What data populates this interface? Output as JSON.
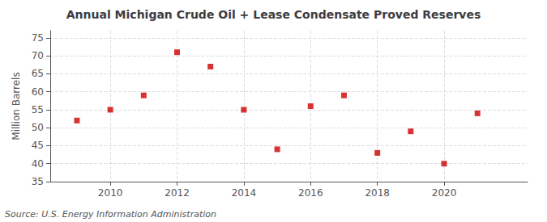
{
  "chart_data": {
    "type": "scatter",
    "title": "Annual Michigan Crude Oil + Lease Condensate Proved Reserves",
    "ylabel": "Million Barrels",
    "source": "Source: U.S. Energy Information Administration",
    "x": [
      2009,
      2010,
      2011,
      2012,
      2013,
      2014,
      2015,
      2016,
      2017,
      2018,
      2019,
      2020,
      2021
    ],
    "values": [
      52.0,
      55.0,
      59.0,
      71.0,
      67.0,
      55.0,
      44.0,
      56.0,
      59.0,
      43.0,
      49.0,
      40.0,
      54.0
    ],
    "color": "#cc0000",
    "marker": "square",
    "xlim": [
      2008.2,
      2022.5
    ],
    "ylim": [
      35,
      77
    ],
    "xticks": [
      2010,
      2012,
      2014,
      2016,
      2018,
      2020
    ],
    "yticks": [
      35,
      40,
      45,
      50,
      55,
      60,
      65,
      70,
      75
    ],
    "grid": true
  }
}
